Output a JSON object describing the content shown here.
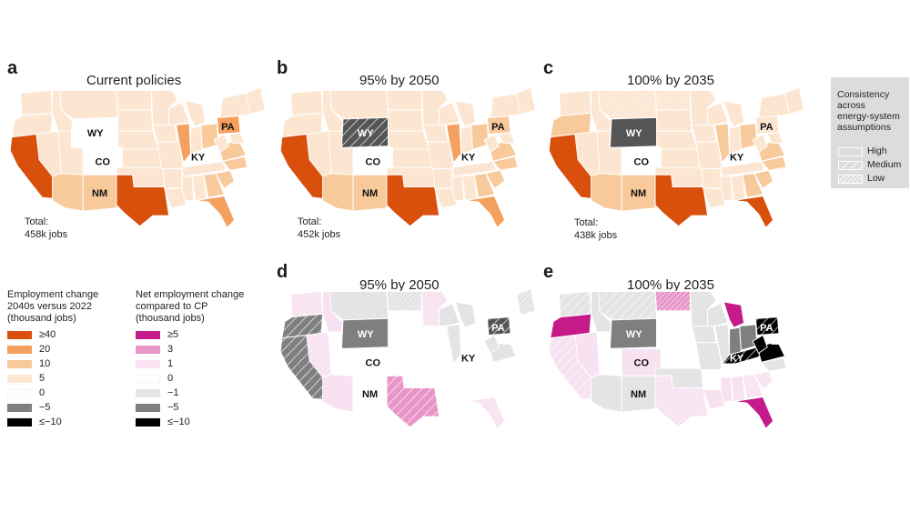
{
  "panels": [
    {
      "id": "a",
      "label": "a",
      "title": "Current policies",
      "total_label": "Total:",
      "total_value": "458k jobs"
    },
    {
      "id": "b",
      "label": "b",
      "title": "95% by 2050",
      "total_label": "Total:",
      "total_value": "452k jobs"
    },
    {
      "id": "c",
      "label": "c",
      "title": "100% by 2035",
      "total_label": "Total:",
      "total_value": "438k jobs"
    },
    {
      "id": "d",
      "label": "d",
      "title": "95% by 2050"
    },
    {
      "id": "e",
      "label": "e",
      "title": "100% by 2035"
    }
  ],
  "state_labels": [
    "WY",
    "CO",
    "NM",
    "KY",
    "PA"
  ],
  "legend_employment": {
    "title_lines": [
      "Employment change",
      "2040s versus 2022",
      "(thousand jobs)"
    ],
    "items": [
      {
        "label": "≥40",
        "color": "#d94f0c"
      },
      {
        "label": "20",
        "color": "#f4a05f"
      },
      {
        "label": "10",
        "color": "#f8c99a"
      },
      {
        "label": "5",
        "color": "#fce6d2"
      },
      {
        "label": "0",
        "color": "#ffffff"
      },
      {
        "label": "−5",
        "color": "#7f7f7f"
      },
      {
        "label": "≤−10",
        "color": "#000000"
      }
    ]
  },
  "legend_net": {
    "title_lines": [
      "Net employment change",
      "compared to CP",
      "(thousand jobs)"
    ],
    "items": [
      {
        "label": "≥5",
        "color": "#c51b8a"
      },
      {
        "label": "3",
        "color": "#e895c8"
      },
      {
        "label": "1",
        "color": "#f8e1f0"
      },
      {
        "label": "0",
        "color": "#ffffff"
      },
      {
        "label": "−1",
        "color": "#e4e4e4"
      },
      {
        "label": "−5",
        "color": "#7f7f7f"
      },
      {
        "label": "≤−10",
        "color": "#000000"
      }
    ]
  },
  "consistency": {
    "title_lines": [
      "Consistency",
      "across",
      "energy-system",
      "assumptions"
    ],
    "items": [
      {
        "label": "High",
        "pattern": "none"
      },
      {
        "label": "Medium",
        "pattern": "wide"
      },
      {
        "label": "Low",
        "pattern": "dense"
      }
    ]
  },
  "colors": {
    "base_a": "#fce6d2",
    "strong": "#d94f0c",
    "orange": "#f4a05f",
    "light": "#f8c99a",
    "wy_dark": "#555555",
    "gray": "#7f7f7f",
    "light_gray": "#e4e4e4",
    "pink_strong": "#c51b8a",
    "pink": "#e895c8",
    "pink_light": "#f8e1f0"
  }
}
